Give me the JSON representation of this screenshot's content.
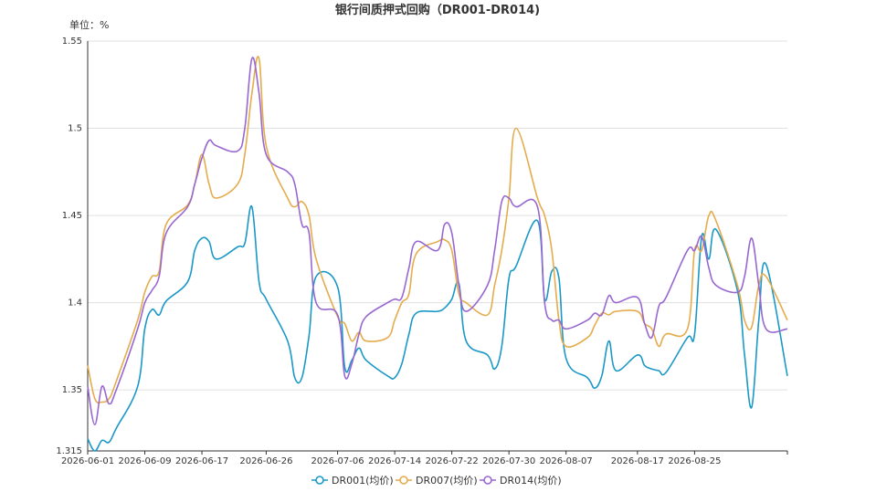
{
  "chart_data": {
    "type": "line",
    "title": "银行间质押式回购（DR001-DR014)",
    "unit_label": "单位：%",
    "ylim": [
      1.315,
      1.55
    ],
    "yticks": [
      "1.55",
      "1.5",
      "1.45",
      "1.4",
      "1.35",
      "1.315"
    ],
    "grid": true,
    "legend_position": "bottom-center",
    "x_tick_labels": [
      "2026-06-01",
      "2026-06-09",
      "2026-06-17",
      "2026-06-26",
      "2026-07-06",
      "2026-07-14",
      "2026-07-22",
      "2026-07-30",
      "2026-08-07",
      "2026-08-17",
      "2026-08-25"
    ],
    "x": [
      "2026-06-01",
      "2026-06-02",
      "2026-06-03",
      "2026-06-04",
      "2026-06-05",
      "2026-06-08",
      "2026-06-09",
      "2026-06-10",
      "2026-06-11",
      "2026-06-12",
      "2026-06-15",
      "2026-06-16",
      "2026-06-17",
      "2026-06-18",
      "2026-06-19",
      "2026-06-22",
      "2026-06-23",
      "2026-06-24",
      "2026-06-25",
      "2026-06-26",
      "2026-06-29",
      "2026-06-30",
      "2026-07-01",
      "2026-07-02",
      "2026-07-03",
      "2026-07-06",
      "2026-07-07",
      "2026-07-08",
      "2026-07-09",
      "2026-07-10",
      "2026-07-13",
      "2026-07-14",
      "2026-07-15",
      "2026-07-16",
      "2026-07-17",
      "2026-07-20",
      "2026-07-21",
      "2026-07-22",
      "2026-07-23",
      "2026-07-24",
      "2026-07-27",
      "2026-07-28",
      "2026-07-29",
      "2026-07-30",
      "2026-07-31",
      "2026-08-03",
      "2026-08-04",
      "2026-08-05",
      "2026-08-06",
      "2026-08-07",
      "2026-08-10",
      "2026-08-11",
      "2026-08-12",
      "2026-08-13",
      "2026-08-14",
      "2026-08-17",
      "2026-08-18",
      "2026-08-19",
      "2026-08-20",
      "2026-08-21",
      "2026-08-24",
      "2026-08-25",
      "2026-08-26",
      "2026-08-27",
      "2026-08-28",
      "2026-08-31",
      "2026-09-01",
      "2026-09-02",
      "2026-09-03",
      "2026-09-04",
      "2026-09-07"
    ],
    "series": [
      {
        "name": "DR001(均价)",
        "color": "#1a98c7",
        "values": [
          1.322,
          1.315,
          1.321,
          1.32,
          1.328,
          1.352,
          1.385,
          1.396,
          1.393,
          1.401,
          1.412,
          1.43,
          1.437,
          1.435,
          1.425,
          1.432,
          1.434,
          1.455,
          1.412,
          1.402,
          1.378,
          1.357,
          1.357,
          1.381,
          1.415,
          1.409,
          1.363,
          1.367,
          1.374,
          1.367,
          1.358,
          1.357,
          1.365,
          1.382,
          1.394,
          1.395,
          1.397,
          1.402,
          1.411,
          1.378,
          1.37,
          1.362,
          1.375,
          1.414,
          1.421,
          1.447,
          1.402,
          1.418,
          1.414,
          1.368,
          1.357,
          1.351,
          1.358,
          1.378,
          1.361,
          1.37,
          1.364,
          1.362,
          1.361,
          1.36,
          1.38,
          1.382,
          1.438,
          1.425,
          1.442,
          1.407,
          1.37,
          1.34,
          1.39,
          1.422,
          1.358
        ]
      },
      {
        "name": "DR007(均价)",
        "color": "#e4ac4c",
        "values": [
          1.364,
          1.345,
          1.343,
          1.345,
          1.355,
          1.39,
          1.406,
          1.415,
          1.418,
          1.445,
          1.456,
          1.468,
          1.485,
          1.468,
          1.46,
          1.468,
          1.485,
          1.52,
          1.54,
          1.49,
          1.46,
          1.455,
          1.458,
          1.45,
          1.425,
          1.392,
          1.388,
          1.378,
          1.383,
          1.378,
          1.38,
          1.39,
          1.4,
          1.405,
          1.428,
          1.435,
          1.436,
          1.43,
          1.405,
          1.4,
          1.393,
          1.41,
          1.43,
          1.46,
          1.5,
          1.46,
          1.45,
          1.43,
          1.39,
          1.375,
          1.38,
          1.387,
          1.394,
          1.393,
          1.395,
          1.395,
          1.388,
          1.385,
          1.375,
          1.382,
          1.385,
          1.43,
          1.43,
          1.45,
          1.447,
          1.41,
          1.39,
          1.386,
          1.41,
          1.415,
          1.39
        ]
      },
      {
        "name": "DR014(均价)",
        "color": "#9867d1",
        "values": [
          1.352,
          1.33,
          1.352,
          1.342,
          1.35,
          1.385,
          1.4,
          1.407,
          1.415,
          1.44,
          1.455,
          1.468,
          1.483,
          1.493,
          1.49,
          1.487,
          1.5,
          1.54,
          1.52,
          1.485,
          1.475,
          1.468,
          1.445,
          1.44,
          1.4,
          1.393,
          1.358,
          1.365,
          1.382,
          1.392,
          1.4,
          1.402,
          1.403,
          1.42,
          1.435,
          1.43,
          1.445,
          1.44,
          1.41,
          1.395,
          1.41,
          1.43,
          1.458,
          1.46,
          1.455,
          1.455,
          1.4,
          1.39,
          1.39,
          1.385,
          1.39,
          1.394,
          1.393,
          1.404,
          1.4,
          1.403,
          1.388,
          1.38,
          1.398,
          1.403,
          1.43,
          1.43,
          1.438,
          1.42,
          1.41,
          1.406,
          1.415,
          1.437,
          1.41,
          1.385,
          1.385
        ]
      }
    ]
  }
}
